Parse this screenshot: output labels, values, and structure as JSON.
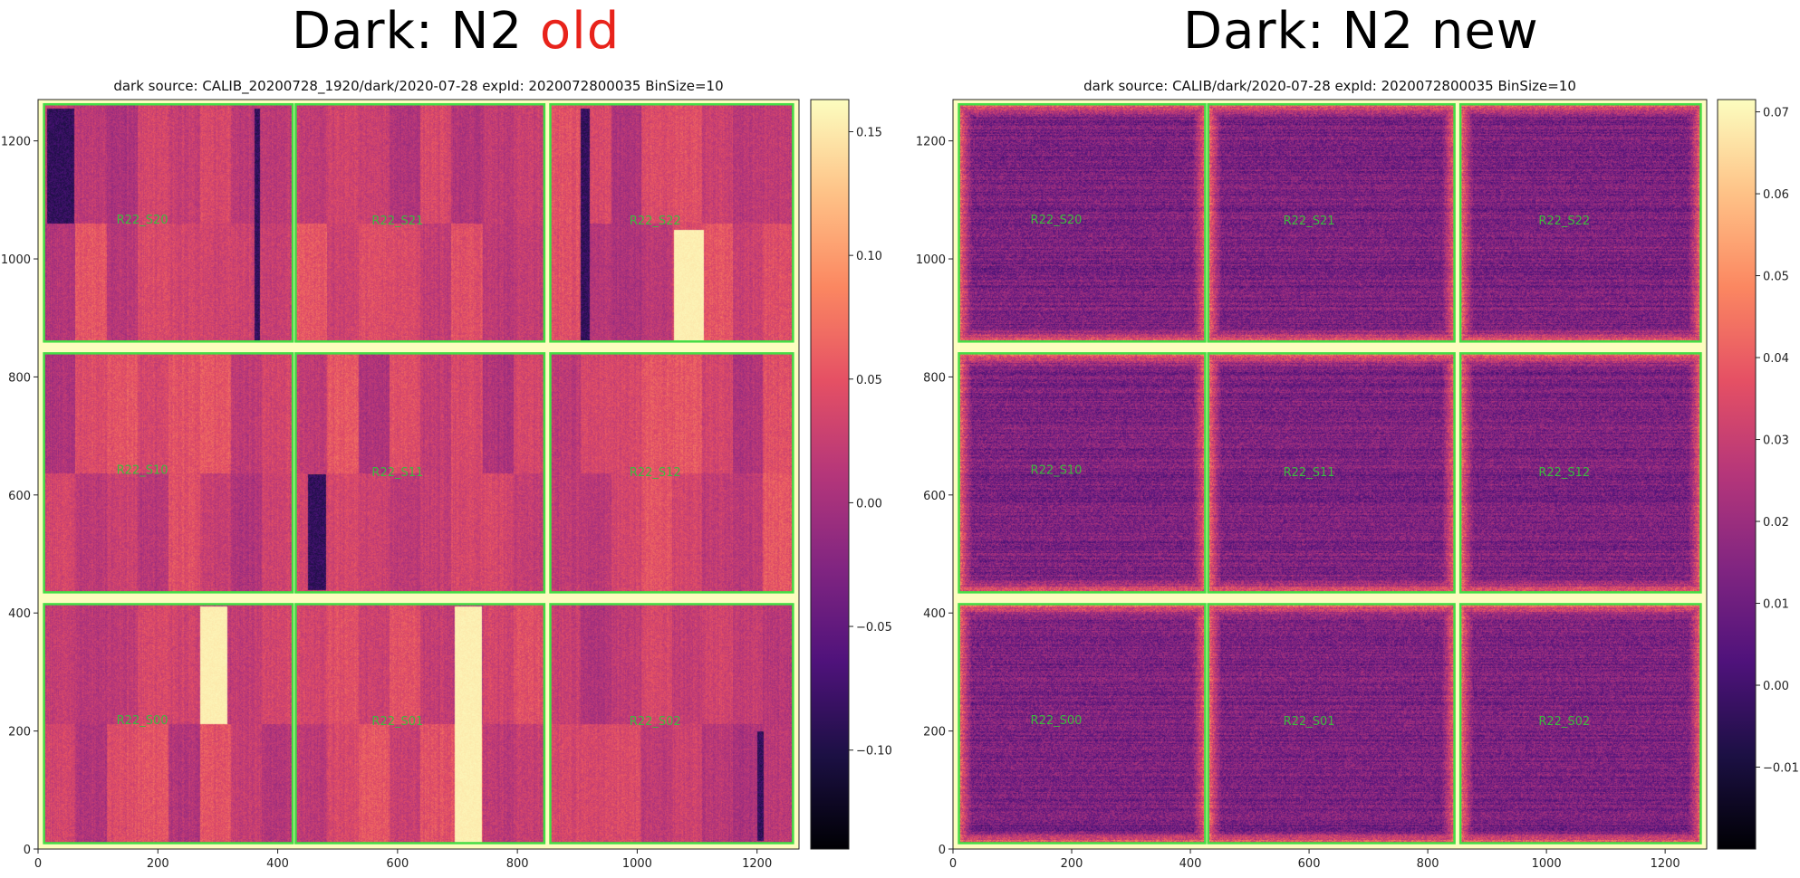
{
  "headings": [
    {
      "text": "Dark: N2 ",
      "highlight": "old",
      "highlight_color": "#e8231b"
    },
    {
      "text": "Dark: N2 ",
      "highlight": "new",
      "highlight_color": "#000000"
    }
  ],
  "chart_data": [
    {
      "type": "heatmap",
      "title": "dark source: CALIB_20200728_1920/dark/2020-07-28  expId: 2020072800035  BinSize=10",
      "xlim": [
        0,
        1270
      ],
      "ylim": [
        0,
        1270
      ],
      "xticks": [
        0,
        200,
        400,
        600,
        800,
        1000,
        1200
      ],
      "yticks": [
        0,
        200,
        400,
        600,
        800,
        1000,
        1200
      ],
      "colormap": "magma",
      "colorbar": {
        "vmin": -0.14,
        "vmax": 0.163,
        "ticks": [
          0.15,
          0.1,
          0.05,
          0.0,
          -0.05,
          -0.1
        ],
        "tick_labels": [
          "0.15",
          "0.10",
          "0.05",
          "0.00",
          "−0.05",
          "−0.10"
        ]
      },
      "outline_color": "#44dd44",
      "sensors": [
        {
          "label": "R22_S20",
          "x": 174,
          "y": 1060
        },
        {
          "label": "R22_S21",
          "x": 600,
          "y": 1058
        },
        {
          "label": "R22_S22",
          "x": 1030,
          "y": 1058
        },
        {
          "label": "R22_S10",
          "x": 174,
          "y": 636
        },
        {
          "label": "R22_S11",
          "x": 600,
          "y": 632
        },
        {
          "label": "R22_S12",
          "x": 1030,
          "y": 632
        },
        {
          "label": "R22_S00",
          "x": 174,
          "y": 212
        },
        {
          "label": "R22_S01",
          "x": 600,
          "y": 210
        },
        {
          "label": "R22_S02",
          "x": 1030,
          "y": 210
        }
      ],
      "features": {
        "segment_striping": true,
        "bright_columns": [
          [
            270,
            315,
            212,
            412
          ],
          [
            695,
            740,
            0,
            412
          ],
          [
            1060,
            1110,
            850,
            1050
          ]
        ],
        "dark_columns": [
          [
            15,
            60,
            1060,
            1256
          ],
          [
            360,
            370,
            860,
            1256
          ],
          [
            905,
            920,
            860,
            1256
          ],
          [
            450,
            480,
            440,
            635
          ],
          [
            1200,
            1210,
            15,
            200
          ]
        ]
      },
      "seed": 7
    },
    {
      "type": "heatmap",
      "title": "dark source: CALIB/dark/2020-07-28  expId: 2020072800035  BinSize=10",
      "xlim": [
        0,
        1270
      ],
      "ylim": [
        0,
        1270
      ],
      "xticks": [
        0,
        200,
        400,
        600,
        800,
        1000,
        1200
      ],
      "yticks": [
        0,
        200,
        400,
        600,
        800,
        1000,
        1200
      ],
      "colormap": "magma",
      "colorbar": {
        "vmin": -0.02,
        "vmax": 0.0715,
        "ticks": [
          0.07,
          0.06,
          0.05,
          0.04,
          0.03,
          0.02,
          0.01,
          0.0,
          -0.01
        ],
        "tick_labels": [
          "0.07",
          "0.06",
          "0.05",
          "0.04",
          "0.03",
          "0.02",
          "0.01",
          "0.00",
          "−0.01"
        ]
      },
      "outline_color": "#44dd44",
      "sensors": [
        {
          "label": "R22_S20",
          "x": 174,
          "y": 1060
        },
        {
          "label": "R22_S21",
          "x": 600,
          "y": 1058
        },
        {
          "label": "R22_S22",
          "x": 1030,
          "y": 1058
        },
        {
          "label": "R22_S10",
          "x": 174,
          "y": 636
        },
        {
          "label": "R22_S11",
          "x": 600,
          "y": 632
        },
        {
          "label": "R22_S12",
          "x": 1030,
          "y": 632
        },
        {
          "label": "R22_S00",
          "x": 174,
          "y": 212
        },
        {
          "label": "R22_S01",
          "x": 600,
          "y": 210
        },
        {
          "label": "R22_S02",
          "x": 1030,
          "y": 210
        }
      ],
      "features": {
        "segment_striping": false,
        "bright_columns": [],
        "dark_columns": []
      },
      "seed": 11
    }
  ]
}
